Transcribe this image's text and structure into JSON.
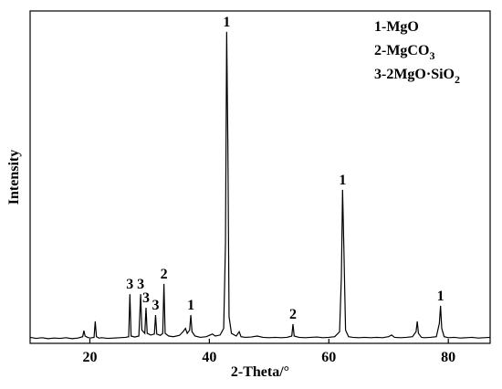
{
  "chart_data": {
    "type": "line",
    "xlabel": "2-Theta/°",
    "ylabel": "Intensity",
    "color": "#000000",
    "xlim": [
      10,
      87
    ],
    "ylim": [
      0,
      1000
    ],
    "xticks": [
      20,
      40,
      60,
      80
    ],
    "legend": [
      {
        "text": "1-MgO"
      },
      {
        "text": "2-MgCO",
        "sub": "3"
      },
      {
        "text": "3-2MgO·SiO",
        "sub": "2"
      }
    ],
    "annotations": [
      {
        "text": "3",
        "x": 26.7,
        "y": 148
      },
      {
        "text": "3",
        "x": 28.5,
        "y": 148
      },
      {
        "text": "3",
        "x": 29.4,
        "y": 107
      },
      {
        "text": "3",
        "x": 31,
        "y": 85
      },
      {
        "text": "2",
        "x": 32.4,
        "y": 179
      },
      {
        "text": "1",
        "x": 36.9,
        "y": 85
      },
      {
        "text": "1",
        "x": 42.9,
        "y": 937
      },
      {
        "text": "2",
        "x": 54,
        "y": 58
      },
      {
        "text": "1",
        "x": 62.3,
        "y": 462
      },
      {
        "text": "1",
        "x": 78.7,
        "y": 113
      }
    ],
    "x": [
      10,
      11,
      12,
      13,
      14,
      15,
      16,
      17,
      18,
      18.8,
      19,
      19.2,
      19.6,
      20,
      20.7,
      20.9,
      21.1,
      21.5,
      22,
      23,
      24,
      25,
      26,
      26.5,
      26.7,
      26.9,
      27.5,
      28.2,
      28.5,
      28.7,
      29.2,
      29.4,
      29.6,
      30.2,
      30.8,
      31,
      31.2,
      31.8,
      32.2,
      32.4,
      32.6,
      33.2,
      34,
      35,
      35.6,
      36,
      36.3,
      36.7,
      36.9,
      37.1,
      37.6,
      38.5,
      39.5,
      40.5,
      41,
      41.8,
      42.4,
      42.7,
      42.9,
      43.1,
      43.3,
      43.7,
      44.5,
      45,
      45.3,
      46,
      47,
      48,
      49,
      50,
      51,
      52,
      53,
      53.8,
      54,
      54.2,
      55,
      56,
      57,
      58,
      59,
      60,
      61,
      61.8,
      62.1,
      62.3,
      62.5,
      62.8,
      63.3,
      64,
      65,
      66,
      67,
      68,
      69,
      70,
      70.5,
      71,
      72,
      73,
      74,
      74.6,
      74.8,
      75,
      75.5,
      76,
      77,
      78,
      78.5,
      78.7,
      78.9,
      79.3,
      80,
      81,
      82,
      83,
      84,
      85,
      86,
      87
    ],
    "values": [
      18,
      15,
      17,
      14,
      16,
      15,
      17,
      14,
      16,
      20,
      38,
      22,
      18,
      16,
      18,
      66,
      20,
      16,
      17,
      15,
      16,
      17,
      18,
      20,
      148,
      22,
      19,
      22,
      148,
      40,
      30,
      107,
      30,
      25,
      28,
      85,
      28,
      24,
      30,
      179,
      30,
      22,
      20,
      24,
      35,
      45,
      30,
      40,
      85,
      35,
      22,
      18,
      20,
      28,
      22,
      25,
      45,
      300,
      937,
      600,
      80,
      30,
      22,
      35,
      20,
      18,
      19,
      22,
      18,
      17,
      18,
      17,
      18,
      22,
      58,
      22,
      18,
      17,
      18,
      19,
      17,
      18,
      20,
      35,
      200,
      462,
      300,
      40,
      20,
      18,
      17,
      18,
      17,
      18,
      17,
      20,
      25,
      18,
      17,
      18,
      20,
      35,
      66,
      30,
      18,
      17,
      18,
      20,
      60,
      113,
      45,
      20,
      17,
      18,
      16,
      17,
      18,
      16,
      17,
      18
    ]
  }
}
